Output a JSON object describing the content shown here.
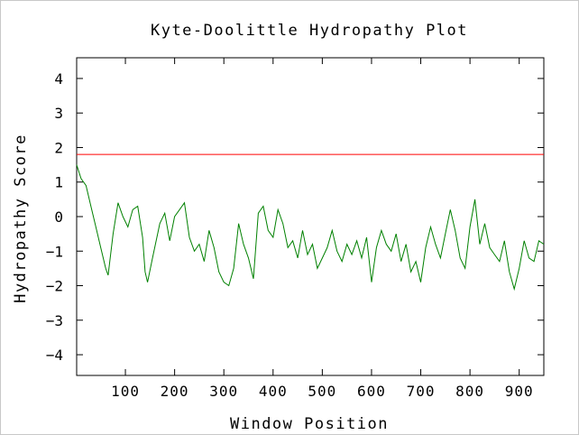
{
  "chart_data": {
    "type": "line",
    "title": "Kyte-Doolittle Hydropathy Plot",
    "xlabel": "Window Position",
    "ylabel": "Hydropathy Score",
    "xlim": [
      1,
      950
    ],
    "ylim": [
      -4.6,
      4.6
    ],
    "xticks": [
      100,
      200,
      300,
      400,
      500,
      600,
      700,
      800,
      900
    ],
    "yticks": [
      -4,
      -3,
      -2,
      -1,
      0,
      1,
      2,
      3,
      4
    ],
    "threshold": {
      "value": 1.8,
      "color": "#ff0000"
    },
    "series": [
      {
        "color": "#008000",
        "x": [
          1,
          10,
          20,
          30,
          40,
          50,
          60,
          65,
          75,
          85,
          95,
          105,
          115,
          125,
          135,
          140,
          145,
          155,
          170,
          180,
          190,
          200,
          210,
          220,
          230,
          240,
          250,
          260,
          270,
          280,
          290,
          300,
          310,
          320,
          330,
          340,
          350,
          360,
          370,
          380,
          390,
          400,
          410,
          420,
          430,
          440,
          450,
          460,
          470,
          480,
          490,
          500,
          510,
          520,
          530,
          540,
          550,
          560,
          570,
          580,
          590,
          600,
          610,
          620,
          630,
          640,
          650,
          660,
          670,
          680,
          690,
          700,
          710,
          720,
          730,
          740,
          750,
          760,
          770,
          780,
          790,
          800,
          810,
          820,
          830,
          840,
          850,
          860,
          870,
          880,
          890,
          900,
          910,
          920,
          930,
          940,
          950
        ],
        "y": [
          1.5,
          1.1,
          0.9,
          0.3,
          -0.3,
          -0.9,
          -1.5,
          -1.7,
          -0.5,
          0.4,
          0.0,
          -0.3,
          0.2,
          0.3,
          -0.6,
          -1.6,
          -1.9,
          -1.2,
          -0.2,
          0.1,
          -0.7,
          0.0,
          0.2,
          0.4,
          -0.6,
          -1.0,
          -0.8,
          -1.3,
          -0.4,
          -0.9,
          -1.6,
          -1.9,
          -2.0,
          -1.5,
          -0.2,
          -0.8,
          -1.2,
          -1.8,
          0.1,
          0.3,
          -0.4,
          -0.6,
          0.2,
          -0.2,
          -0.9,
          -0.7,
          -1.2,
          -0.4,
          -1.1,
          -0.8,
          -1.5,
          -1.2,
          -0.9,
          -0.4,
          -1.0,
          -1.3,
          -0.8,
          -1.1,
          -0.7,
          -1.2,
          -0.6,
          -1.9,
          -0.9,
          -0.4,
          -0.8,
          -1.0,
          -0.5,
          -1.3,
          -0.8,
          -1.6,
          -1.3,
          -1.9,
          -0.9,
          -0.3,
          -0.8,
          -1.2,
          -0.5,
          0.2,
          -0.4,
          -1.2,
          -1.5,
          -0.3,
          0.5,
          -0.8,
          -0.2,
          -0.9,
          -1.1,
          -1.3,
          -0.7,
          -1.6,
          -2.1,
          -1.5,
          -0.7,
          -1.2,
          -1.3,
          -0.7,
          -0.8
        ]
      }
    ]
  }
}
